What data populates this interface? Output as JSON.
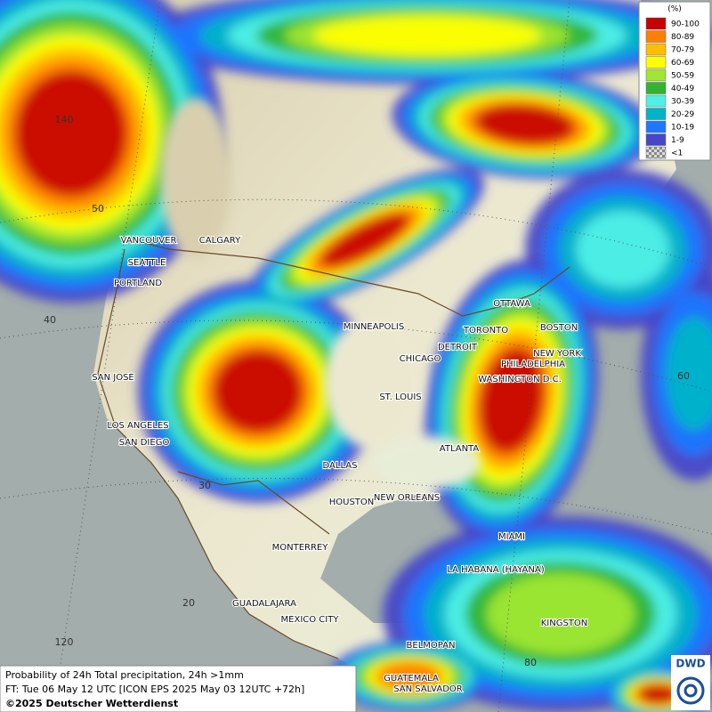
{
  "legend": {
    "title": "(%)",
    "entries": [
      {
        "label": "90-100",
        "color": "#c80000"
      },
      {
        "label": "80-89",
        "color": "#ff7f00"
      },
      {
        "label": "70-79",
        "color": "#ffbf00"
      },
      {
        "label": "60-69",
        "color": "#ffff00"
      },
      {
        "label": "50-59",
        "color": "#a0e632"
      },
      {
        "label": "40-49",
        "color": "#32b432"
      },
      {
        "label": "30-39",
        "color": "#50f0e6"
      },
      {
        "label": "20-29",
        "color": "#00b4c8"
      },
      {
        "label": "10-19",
        "color": "#1e78ff"
      },
      {
        "label": "1-9",
        "color": "#4646c8"
      },
      {
        "label": "<1",
        "color": "#bdbdbd"
      }
    ]
  },
  "cities": [
    "VANCOUVER",
    "CALGARY",
    "SEATTLE",
    "PORTLAND",
    "MINNEAPOLIS",
    "OTTAWA",
    "TORONTO",
    "BOSTON",
    "DETROIT",
    "NEW YORK",
    "CHICAGO",
    "PHILADELPHIA",
    "WASHINGTON D.C.",
    "SAN JOSE",
    "ST. LOUIS",
    "LOS ANGELES",
    "SAN DIEGO",
    "ATLANTA",
    "DALLAS",
    "HOUSTON",
    "NEW ORLEANS",
    "MIAMI",
    "MONTERREY",
    "LA HABANA (HAYANA)",
    "GUADALAJARA",
    "MEXICO CITY",
    "KINGSTON",
    "BELMOPAN",
    "GUATEMALA",
    "SAN SALVADOR"
  ],
  "grid_labels": [
    "140",
    "50",
    "40",
    "30",
    "20",
    "120",
    "60",
    "80"
  ],
  "footer": {
    "line1": "Probability of 24h Total precipitation, 24h >1mm",
    "line2": "FT: Tue 06 May 12 UTC [ICON EPS 2025 May 03 12UTC +72h]",
    "copyright": "©2025 Deutscher Wetterdienst"
  },
  "logo": "DWD"
}
